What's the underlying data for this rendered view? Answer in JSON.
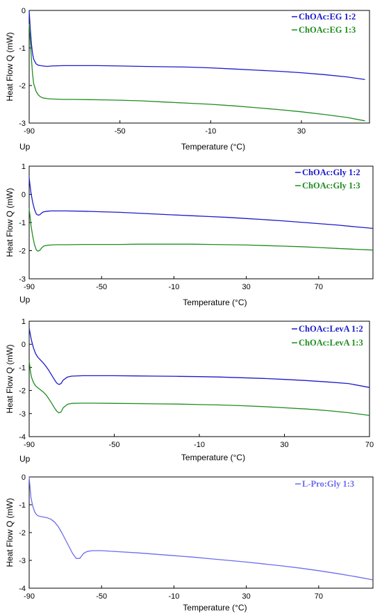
{
  "chart_data": [
    {
      "type": "line",
      "xlabel": "Temperature (°C)",
      "ylabel": "Heat Flow Q (mW)",
      "corner_label": "Up",
      "xlim": [
        -90,
        60
      ],
      "ylim": [
        -3,
        0
      ],
      "xticks": [
        -90,
        -50,
        -10,
        30
      ],
      "yticks": [
        -3,
        -2,
        -1,
        0
      ],
      "legend_position": "top-right",
      "series": [
        {
          "name": "ChOAc:EG 1:2",
          "color": "#1a1acc",
          "x": [
            -90,
            -89.5,
            -89,
            -88.5,
            -88,
            -87,
            -86,
            -85,
            -84,
            -82,
            -80,
            -75,
            -70,
            -60,
            -50,
            -40,
            -30,
            -20,
            -10,
            0,
            10,
            20,
            30,
            40,
            50,
            58
          ],
          "y": [
            0,
            -0.5,
            -0.9,
            -1.15,
            -1.3,
            -1.42,
            -1.46,
            -1.47,
            -1.48,
            -1.49,
            -1.48,
            -1.47,
            -1.47,
            -1.47,
            -1.48,
            -1.49,
            -1.5,
            -1.51,
            -1.53,
            -1.56,
            -1.59,
            -1.62,
            -1.66,
            -1.71,
            -1.77,
            -1.84
          ]
        },
        {
          "name": "ChOAc:EG 1:3",
          "color": "#1e8c1e",
          "x": [
            -90,
            -89.5,
            -89,
            -88.5,
            -88,
            -87,
            -86,
            -85,
            -84,
            -82,
            -80,
            -75,
            -70,
            -60,
            -50,
            -40,
            -30,
            -20,
            -10,
            0,
            10,
            20,
            30,
            40,
            50,
            58
          ],
          "y": [
            -0.35,
            -0.8,
            -1.3,
            -1.7,
            -1.95,
            -2.15,
            -2.25,
            -2.3,
            -2.33,
            -2.35,
            -2.36,
            -2.37,
            -2.37,
            -2.38,
            -2.39,
            -2.41,
            -2.44,
            -2.47,
            -2.5,
            -2.54,
            -2.59,
            -2.64,
            -2.7,
            -2.77,
            -2.85,
            -2.94
          ]
        }
      ]
    },
    {
      "type": "line",
      "xlabel": "Temperature (°C)",
      "ylabel": "Heat Flow Q (mW)",
      "corner_label": "Up",
      "xlim": [
        -90,
        100
      ],
      "ylim": [
        -3,
        1
      ],
      "xticks": [
        -90,
        -50,
        -10,
        30,
        70
      ],
      "yticks": [
        -3,
        -2,
        -1,
        0,
        1
      ],
      "legend_position": "top-right",
      "series": [
        {
          "name": "ChOAc:Gly 1:2",
          "color": "#1a1acc",
          "x": [
            -90,
            -89.5,
            -89,
            -88,
            -87,
            -86,
            -85,
            -84,
            -83,
            -82,
            -80,
            -78,
            -75,
            -70,
            -60,
            -50,
            -40,
            -30,
            -20,
            -10,
            0,
            10,
            20,
            30,
            40,
            50,
            60,
            70,
            80,
            90,
            100
          ],
          "y": [
            0.6,
            0.3,
            0.05,
            -0.3,
            -0.55,
            -0.7,
            -0.74,
            -0.72,
            -0.66,
            -0.62,
            -0.6,
            -0.59,
            -0.59,
            -0.59,
            -0.6,
            -0.62,
            -0.64,
            -0.67,
            -0.7,
            -0.73,
            -0.76,
            -0.79,
            -0.82,
            -0.86,
            -0.9,
            -0.94,
            -0.99,
            -1.04,
            -1.09,
            -1.15,
            -1.21
          ]
        },
        {
          "name": "ChOAc:Gly 1:3",
          "color": "#1e8c1e",
          "x": [
            -90,
            -89.5,
            -89,
            -88,
            -87,
            -86,
            -85,
            -84,
            -83,
            -82,
            -80,
            -78,
            -75,
            -70,
            -60,
            -50,
            -40,
            -30,
            -20,
            -10,
            0,
            10,
            20,
            30,
            40,
            50,
            60,
            70,
            80,
            90,
            100
          ],
          "y": [
            -0.5,
            -0.8,
            -1.1,
            -1.5,
            -1.8,
            -1.98,
            -2.02,
            -1.98,
            -1.9,
            -1.84,
            -1.81,
            -1.8,
            -1.79,
            -1.79,
            -1.78,
            -1.78,
            -1.78,
            -1.77,
            -1.77,
            -1.77,
            -1.77,
            -1.78,
            -1.79,
            -1.8,
            -1.82,
            -1.84,
            -1.86,
            -1.89,
            -1.92,
            -1.95,
            -1.98
          ]
        }
      ]
    },
    {
      "type": "line",
      "xlabel": "Temperature (°C)",
      "ylabel": "Heat Flow Q (mW)",
      "corner_label": "Up",
      "xlim": [
        -90,
        70
      ],
      "ylim": [
        -4,
        1
      ],
      "xticks": [
        -90,
        -50,
        -10,
        30,
        70
      ],
      "yticks": [
        -4,
        -3,
        -2,
        -1,
        0,
        1
      ],
      "legend_position": "top-right",
      "series": [
        {
          "name": "ChOAc:LevA 1:2",
          "color": "#1a1acc",
          "x": [
            -90,
            -89.5,
            -89,
            -88,
            -87,
            -86,
            -85,
            -84,
            -83,
            -82,
            -81,
            -80,
            -79,
            -78,
            -77,
            -76,
            -75,
            -74,
            -72,
            -70,
            -65,
            -60,
            -50,
            -40,
            -30,
            -20,
            -10,
            0,
            10,
            20,
            30,
            40,
            50,
            60,
            70
          ],
          "y": [
            0.7,
            0.45,
            0.2,
            -0.15,
            -0.4,
            -0.55,
            -0.65,
            -0.75,
            -0.85,
            -0.97,
            -1.1,
            -1.25,
            -1.4,
            -1.55,
            -1.68,
            -1.74,
            -1.7,
            -1.55,
            -1.42,
            -1.38,
            -1.36,
            -1.36,
            -1.36,
            -1.37,
            -1.38,
            -1.39,
            -1.4,
            -1.42,
            -1.45,
            -1.48,
            -1.52,
            -1.57,
            -1.63,
            -1.7,
            -1.87
          ]
        },
        {
          "name": "ChOAc:LevA 1:3",
          "color": "#1e8c1e",
          "x": [
            -90,
            -89.5,
            -89,
            -88,
            -87,
            -86,
            -85,
            -84,
            -83,
            -82,
            -81,
            -80,
            -79,
            -78,
            -77,
            -76,
            -75,
            -74,
            -72,
            -70,
            -65,
            -60,
            -50,
            -40,
            -30,
            -20,
            -10,
            0,
            10,
            20,
            30,
            40,
            50,
            60,
            70
          ],
          "y": [
            -0.7,
            -1.1,
            -1.4,
            -1.65,
            -1.8,
            -1.88,
            -1.95,
            -2.02,
            -2.1,
            -2.2,
            -2.33,
            -2.47,
            -2.62,
            -2.77,
            -2.9,
            -2.97,
            -2.93,
            -2.75,
            -2.6,
            -2.56,
            -2.55,
            -2.55,
            -2.56,
            -2.57,
            -2.58,
            -2.59,
            -2.61,
            -2.63,
            -2.66,
            -2.7,
            -2.75,
            -2.8,
            -2.87,
            -2.96,
            -3.08
          ]
        }
      ]
    },
    {
      "type": "line",
      "xlabel": "Temperature (°C)",
      "ylabel": "Heat Flow Q (mW)",
      "xlim": [
        -90,
        100
      ],
      "ylim": [
        -4,
        0
      ],
      "xticks": [
        -90,
        -50,
        -10,
        30,
        70
      ],
      "yticks": [
        -4,
        -3,
        -2,
        -1,
        0
      ],
      "legend_position": "top-right",
      "series": [
        {
          "name": "L-Pro:Gly 1:3",
          "color": "#6b6bf0",
          "x": [
            -90,
            -89.5,
            -89,
            -88,
            -87,
            -86,
            -85,
            -83,
            -80,
            -78,
            -76,
            -74,
            -72,
            -70,
            -68,
            -66,
            -64,
            -62,
            -60,
            -58,
            -55,
            -50,
            -40,
            -30,
            -20,
            -10,
            0,
            10,
            20,
            30,
            40,
            50,
            60,
            70,
            80,
            90,
            100
          ],
          "y": [
            0,
            -0.4,
            -0.75,
            -1.05,
            -1.25,
            -1.35,
            -1.4,
            -1.43,
            -1.47,
            -1.52,
            -1.62,
            -1.78,
            -2.0,
            -2.25,
            -2.5,
            -2.75,
            -2.93,
            -2.93,
            -2.75,
            -2.68,
            -2.65,
            -2.65,
            -2.69,
            -2.73,
            -2.78,
            -2.83,
            -2.88,
            -2.94,
            -3.0,
            -3.06,
            -3.13,
            -3.2,
            -3.28,
            -3.37,
            -3.47,
            -3.58,
            -3.7
          ]
        }
      ]
    }
  ]
}
